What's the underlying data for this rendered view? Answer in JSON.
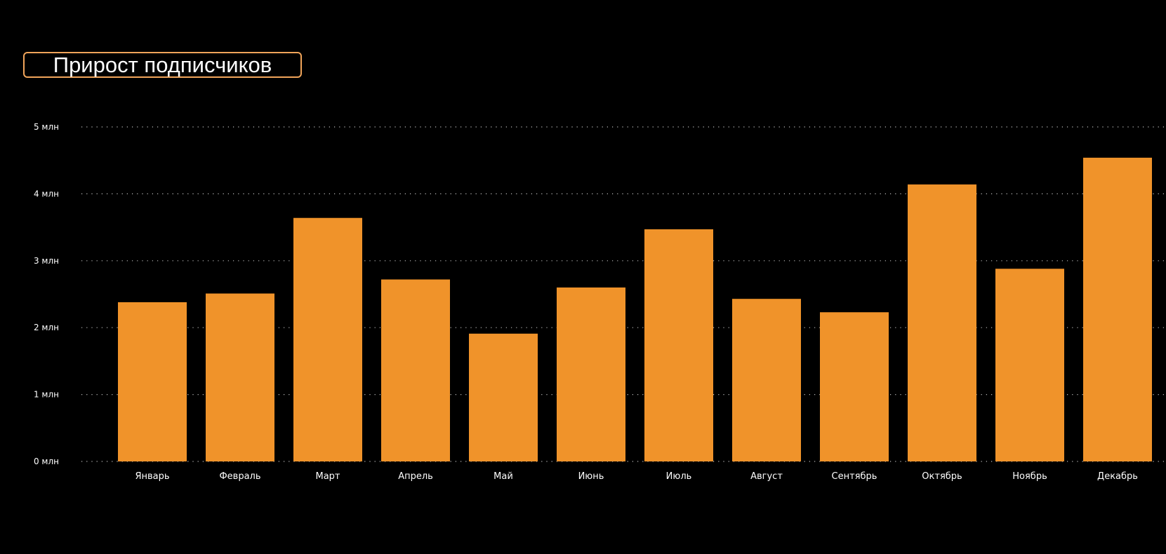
{
  "chart_data": {
    "type": "bar",
    "title": "Прирост подписчиков",
    "xlabel": "",
    "ylabel": "",
    "categories": [
      "Январь",
      "Февраль",
      "Март",
      "Апрель",
      "Май",
      "Июнь",
      "Июль",
      "Август",
      "Сентябрь",
      "Октябрь",
      "Ноябрь",
      "Декабрь"
    ],
    "values": [
      2.38,
      2.51,
      3.64,
      2.72,
      1.91,
      2.6,
      3.47,
      2.43,
      2.23,
      4.14,
      2.88,
      4.54
    ],
    "ylim": [
      0,
      5
    ],
    "yticks": [
      0,
      1,
      2,
      3,
      4,
      5
    ],
    "ytick_labels": [
      "0 млн",
      "1 млн",
      "2 млн",
      "3 млн",
      "4 млн",
      "5 млн"
    ],
    "grid": true,
    "legend": "none"
  },
  "colors": {
    "background": "#000000",
    "bar": "#F0932A",
    "title_border": "#F0A45A",
    "text": "#FFFFFF",
    "grid": "#BBBBBB"
  }
}
